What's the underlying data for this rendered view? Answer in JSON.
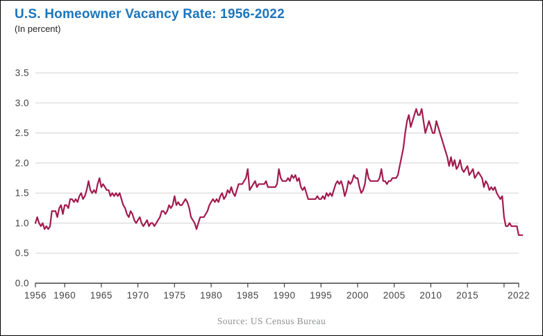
{
  "header": {
    "title": "U.S. Homeowner Vacancy Rate: 1956-2022",
    "subtitle": "(In percent)"
  },
  "footer": {
    "source": "Source: US Census Bureau"
  },
  "colors": {
    "title_blue": "#1b75bc",
    "subtitle_text": "#231f20",
    "line": "#a11a4e",
    "gridline": "#dcdcdc",
    "axis": "#414042",
    "tick_label": "#414042",
    "source_text": "#8f9194",
    "background": "#ffffff",
    "border": "#000000"
  },
  "chart_data": {
    "type": "line",
    "title": "U.S. Homeowner Vacancy Rate: 1956-2022",
    "units": "percent",
    "xlabel": "",
    "ylabel": "Homeowner vacancy rate (in percent)",
    "xlim": [
      1956,
      2022.5
    ],
    "ylim": [
      0.0,
      3.5
    ],
    "grid": true,
    "legend": "none",
    "yticks": [
      0.0,
      0.5,
      1.0,
      1.5,
      2.0,
      2.5,
      3.0,
      3.5
    ],
    "xticks": [
      {
        "year": 1956,
        "label": "1956"
      },
      {
        "year": 1960,
        "label": "1960"
      },
      {
        "year": 1965,
        "label": "1965"
      },
      {
        "year": 1970,
        "label": "1970"
      },
      {
        "year": 1975,
        "label": "1975"
      },
      {
        "year": 1980,
        "label": "1980"
      },
      {
        "year": 1985,
        "label": "1985"
      },
      {
        "year": 1990,
        "label": "1990"
      },
      {
        "year": 1995,
        "label": "1995"
      },
      {
        "year": 2000,
        "label": "2000"
      },
      {
        "year": 2005,
        "label": "2005"
      },
      {
        "year": 2010,
        "label": "2010"
      },
      {
        "year": 2015,
        "label": "2015"
      },
      {
        "year": 2020,
        "label": ""
      },
      {
        "year": 2022,
        "label": "2022"
      }
    ],
    "series": [
      {
        "name": "U.S. homeowner vacancy rate",
        "frequency": "quarterly",
        "start_year": 1956,
        "step_years": 0.25,
        "values": [
          1.0,
          1.1,
          1.0,
          0.95,
          1.0,
          0.9,
          0.95,
          0.9,
          0.95,
          1.2,
          1.2,
          1.2,
          1.1,
          1.25,
          1.3,
          1.15,
          1.3,
          1.3,
          1.25,
          1.4,
          1.4,
          1.35,
          1.4,
          1.35,
          1.45,
          1.5,
          1.4,
          1.45,
          1.55,
          1.7,
          1.55,
          1.5,
          1.55,
          1.5,
          1.65,
          1.75,
          1.6,
          1.65,
          1.6,
          1.55,
          1.55,
          1.45,
          1.5,
          1.45,
          1.5,
          1.45,
          1.5,
          1.4,
          1.3,
          1.25,
          1.15,
          1.1,
          1.2,
          1.15,
          1.05,
          1.0,
          1.05,
          1.1,
          1.0,
          0.95,
          1.0,
          1.05,
          0.95,
          1.0,
          1.0,
          0.95,
          1.0,
          1.05,
          1.1,
          1.2,
          1.2,
          1.15,
          1.2,
          1.3,
          1.25,
          1.3,
          1.45,
          1.3,
          1.35,
          1.3,
          1.3,
          1.35,
          1.4,
          1.35,
          1.25,
          1.1,
          1.05,
          1.0,
          0.9,
          1.0,
          1.1,
          1.1,
          1.1,
          1.15,
          1.2,
          1.3,
          1.35,
          1.4,
          1.35,
          1.4,
          1.35,
          1.45,
          1.5,
          1.4,
          1.45,
          1.55,
          1.5,
          1.6,
          1.5,
          1.45,
          1.55,
          1.65,
          1.65,
          1.65,
          1.7,
          1.75,
          1.9,
          1.55,
          1.6,
          1.65,
          1.7,
          1.6,
          1.65,
          1.65,
          1.65,
          1.65,
          1.7,
          1.6,
          1.6,
          1.6,
          1.6,
          1.6,
          1.65,
          1.9,
          1.75,
          1.7,
          1.7,
          1.7,
          1.75,
          1.7,
          1.8,
          1.75,
          1.8,
          1.7,
          1.75,
          1.6,
          1.55,
          1.6,
          1.5,
          1.4,
          1.4,
          1.4,
          1.4,
          1.4,
          1.45,
          1.4,
          1.4,
          1.45,
          1.4,
          1.5,
          1.45,
          1.5,
          1.45,
          1.55,
          1.65,
          1.7,
          1.65,
          1.7,
          1.6,
          1.45,
          1.55,
          1.7,
          1.65,
          1.7,
          1.8,
          1.75,
          1.75,
          1.6,
          1.5,
          1.55,
          1.65,
          1.9,
          1.75,
          1.7,
          1.7,
          1.7,
          1.7,
          1.7,
          1.75,
          1.9,
          1.7,
          1.7,
          1.65,
          1.7,
          1.7,
          1.75,
          1.75,
          1.75,
          1.8,
          1.95,
          2.1,
          2.25,
          2.5,
          2.7,
          2.8,
          2.6,
          2.7,
          2.8,
          2.9,
          2.8,
          2.8,
          2.9,
          2.7,
          2.5,
          2.6,
          2.7,
          2.6,
          2.5,
          2.5,
          2.7,
          2.6,
          2.5,
          2.4,
          2.3,
          2.2,
          2.1,
          1.95,
          2.1,
          1.95,
          2.05,
          1.9,
          1.95,
          2.05,
          1.9,
          1.85,
          1.9,
          1.95,
          1.8,
          1.85,
          1.9,
          1.75,
          1.8,
          1.85,
          1.8,
          1.75,
          1.6,
          1.7,
          1.65,
          1.55,
          1.6,
          1.55,
          1.6,
          1.5,
          1.45,
          1.4,
          1.45,
          1.1,
          0.95,
          0.95,
          1.0,
          0.95,
          0.95,
          0.95,
          0.95,
          0.8,
          0.8,
          0.8
        ]
      }
    ],
    "source": "Source: US Census Bureau"
  }
}
